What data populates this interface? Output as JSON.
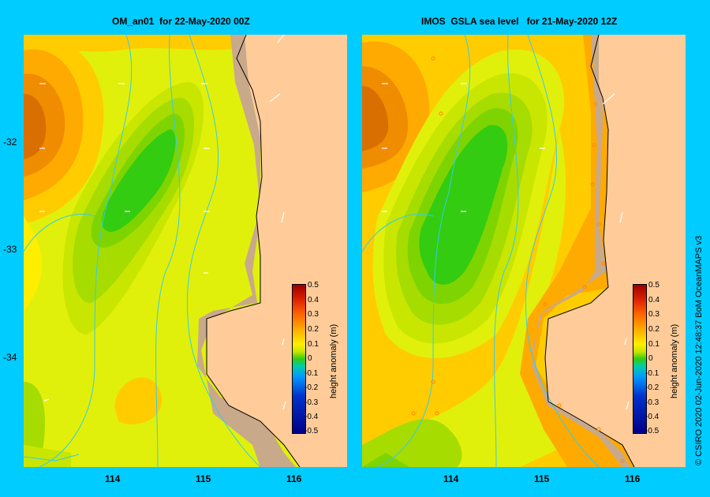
{
  "left_panel": {
    "title": "OM_an01  for 22-May-2020 00Z",
    "yticks": [
      "-32",
      "-33",
      "-34"
    ]
  },
  "right_panel": {
    "title": "IMOS  GSLA sea level   for 21-May-2020 12Z"
  },
  "xticks": [
    "114",
    "115",
    "116"
  ],
  "colorbar": {
    "title": "height anomaly (m)",
    "ticks": [
      "0.5",
      "0.4",
      "0.3",
      "0.2",
      "0.1",
      "0",
      "-0.1",
      "-0.2",
      "-0.3",
      "-0.4",
      "-0.5"
    ],
    "range": [
      -0.5,
      0.5
    ]
  },
  "credit": "© CSIRO 2020   02-Jun-2020 12:48:37 BoM OceanMAPS v3",
  "colors": {
    "background": "#00ccff",
    "land": "#ffcc99",
    "shelf": "#c8a98a"
  }
}
